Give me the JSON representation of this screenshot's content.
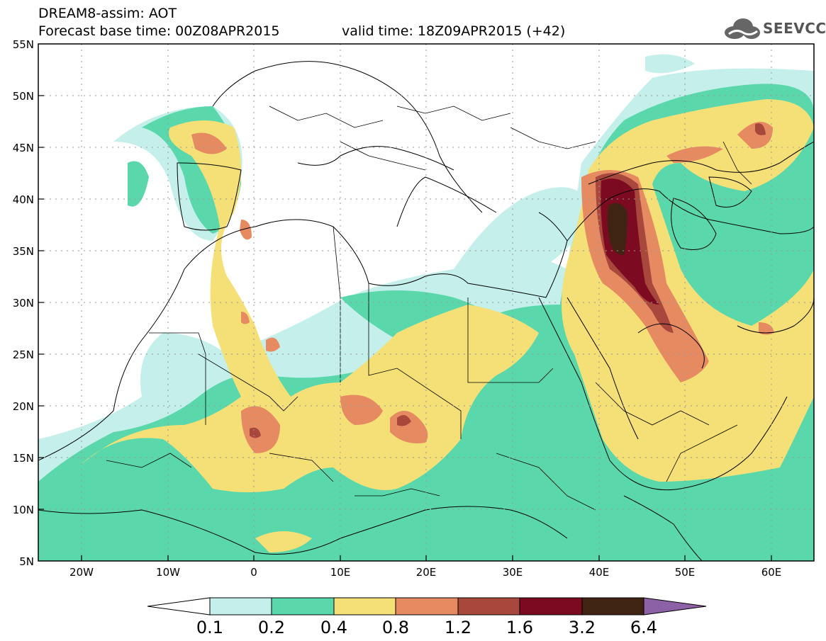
{
  "header": {
    "line1": "DREAM8-assim: AOT",
    "line2": "Forecast base time: 00Z08APR2015",
    "line3": "valid time: 18Z09APR2015 (+42)"
  },
  "logo": {
    "text": "SEEVCCC",
    "icon": "cloud-icon"
  },
  "map": {
    "variable": "AOT",
    "lon_range": [
      -25,
      65
    ],
    "lat_range": [
      5,
      55
    ],
    "y_ticks": [
      "55N",
      "50N",
      "45N",
      "40N",
      "35N",
      "30N",
      "25N",
      "20N",
      "15N",
      "10N",
      "5N"
    ],
    "x_ticks": [
      "20W",
      "10W",
      "0",
      "10E",
      "20E",
      "30E",
      "40E",
      "50E",
      "60E"
    ],
    "grid": true
  },
  "colorbar": {
    "labels": [
      "0.1",
      "0.2",
      "0.4",
      "0.8",
      "1.2",
      "1.6",
      "3.2",
      "6.4"
    ],
    "colors": [
      "#ffffff",
      "#c4efea",
      "#5ad8ab",
      "#f5e077",
      "#e68a61",
      "#a8473b",
      "#7c0b22",
      "#3f2413",
      "#8d61a6"
    ]
  }
}
